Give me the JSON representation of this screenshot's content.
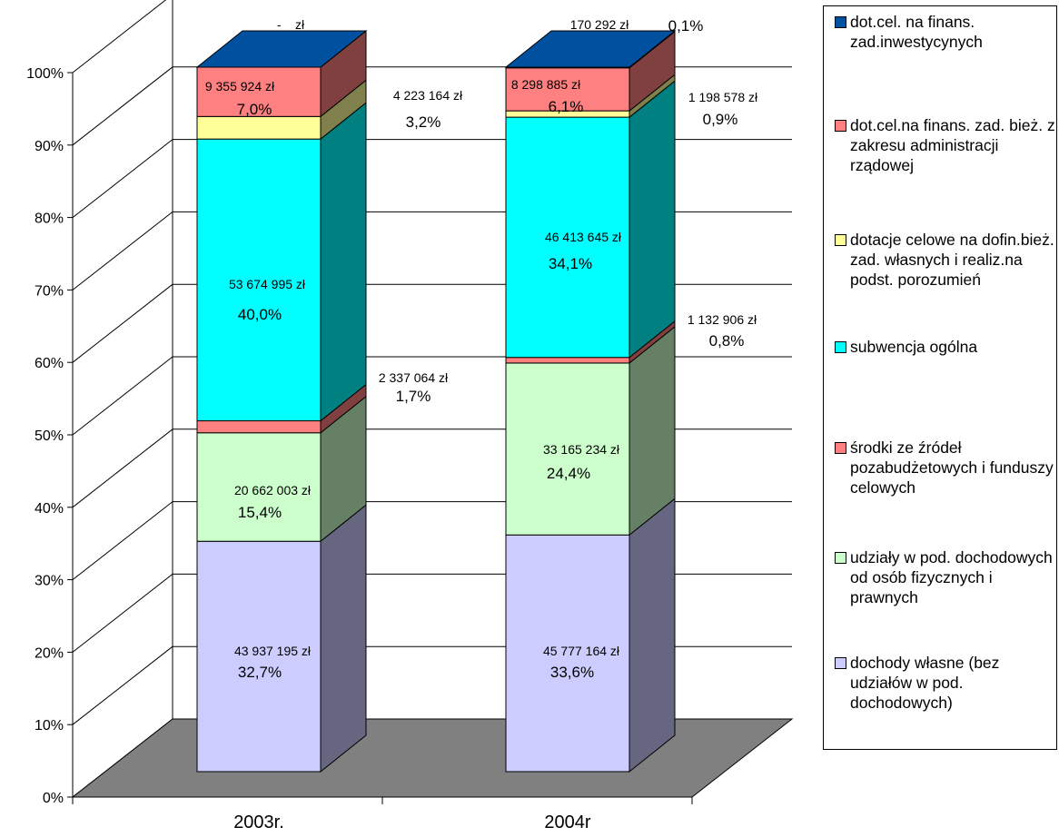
{
  "chart_data": {
    "type": "bar",
    "stacked": "percent",
    "style": "3d",
    "categories": [
      "2003r.",
      "2004r"
    ],
    "y_ticks": [
      "0%",
      "10%",
      "20%",
      "30%",
      "40%",
      "50%",
      "60%",
      "70%",
      "80%",
      "90%",
      "100%"
    ],
    "ylim": [
      0,
      100
    ],
    "grid": true,
    "legend_position": "right",
    "series": [
      {
        "name": "dochody własne (bez udziałów w pod. dochodowych)",
        "color": "#ccccff",
        "values": [
          32.7,
          33.6
        ],
        "value_labels": [
          "43 937 195 zł",
          "45 777 164 zł"
        ],
        "percent_labels": [
          "32,7%",
          "33,6%"
        ]
      },
      {
        "name": "udziały w pod. dochodowych od osób fizycznych i prawnych",
        "color": "#ccffcc",
        "values": [
          15.4,
          24.4
        ],
        "value_labels": [
          "20 662 003 zł",
          "33 165 234 zł"
        ],
        "percent_labels": [
          "15,4%",
          "24,4%"
        ]
      },
      {
        "name": "środki ze źródeł pozabudżetowych i funduszy celowych",
        "color": "#ff8080",
        "values": [
          1.7,
          0.8
        ],
        "value_labels": [
          "2 337 064 zł",
          "1 132 906 zł"
        ],
        "percent_labels": [
          "1,7%",
          "0,8%"
        ]
      },
      {
        "name": "subwencja ogólna",
        "color": "#00ffff",
        "values": [
          40.0,
          34.1
        ],
        "value_labels": [
          "53 674 995 zł",
          "46 413 645 zł"
        ],
        "percent_labels": [
          "40,0%",
          "34,1%"
        ]
      },
      {
        "name": "dotacje celowe na dofin.bież. zad. własnych i realiz.na podst. porozumień",
        "color": "#ffff99",
        "values": [
          3.2,
          0.9
        ],
        "value_labels": [
          "4 223 164 zł",
          "1 198 578 zł"
        ],
        "percent_labels": [
          "3,2%",
          "0,9%"
        ]
      },
      {
        "name": "dot.cel.na finans. zad. bież. z zakresu administracji rządowej",
        "color": "#ff8080",
        "values": [
          7.0,
          6.1
        ],
        "value_labels": [
          "9 355 924 zł",
          "8 298 885 zł"
        ],
        "percent_labels": [
          "7,0%",
          "6,1%"
        ]
      },
      {
        "name": "dot.cel. na finans. zad.inwestycynych",
        "color": "#0050a0",
        "values": [
          0.0,
          0.1
        ],
        "value_labels": [
          "-    zł",
          "170 292 zł"
        ],
        "percent_labels": [
          "",
          "0,1%"
        ]
      }
    ]
  },
  "legend": {
    "items": [
      {
        "label": "dot.cel. na finans. zad.inwestycynych",
        "color": "#0050a0"
      },
      {
        "label": "dot.cel.na finans. zad. bież. z zakresu administracji rządowej",
        "color": "#ff8080"
      },
      {
        "label": "dotacje celowe na dofin.bież. zad. własnych i realiz.na podst. porozumień",
        "color": "#ffff99"
      },
      {
        "label": "subwencja ogólna",
        "color": "#00ffff"
      },
      {
        "label": "środki ze źródeł pozabudżetowych i funduszy celowych",
        "color": "#ff8080"
      },
      {
        "label": "udziały w pod. dochodowych od osób fizycznych i prawnych",
        "color": "#ccffcc"
      },
      {
        "label": "dochody własne (bez udziałów w pod. dochodowych)",
        "color": "#ccccff"
      }
    ]
  }
}
